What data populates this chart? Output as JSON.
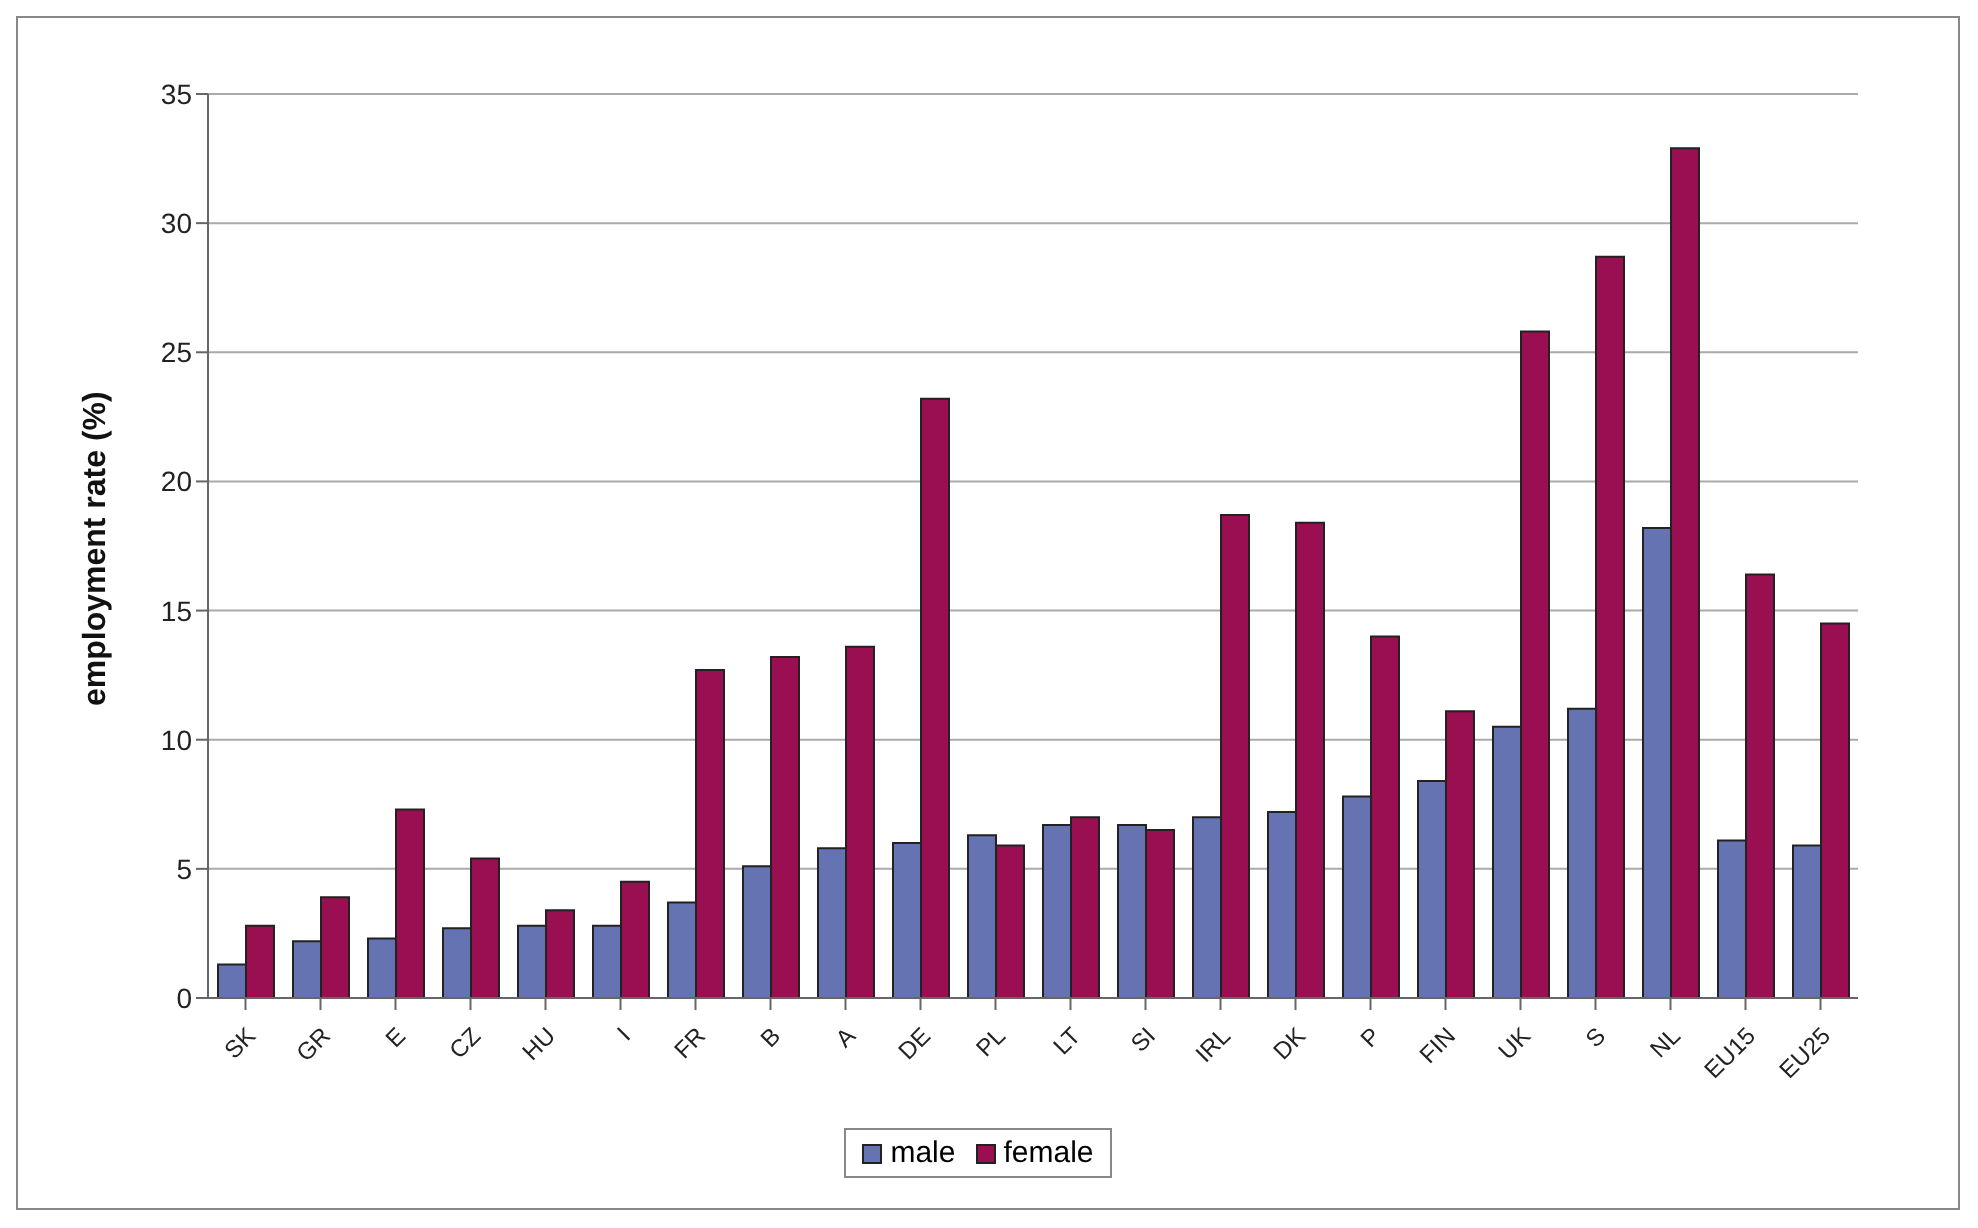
{
  "chart_data": {
    "type": "bar",
    "ylabel": "employment rate (%)",
    "categories": [
      "SK",
      "GR",
      "E",
      "CZ",
      "HU",
      "I",
      "FR",
      "B",
      "A",
      "DE",
      "PL",
      "LT",
      "SI",
      "IRL",
      "DK",
      "P",
      "FIN",
      "UK",
      "S",
      "NL",
      "EU15",
      "EU25"
    ],
    "series": [
      {
        "name": "male",
        "color": "#6673b3",
        "values": [
          1.3,
          2.2,
          2.3,
          2.7,
          2.8,
          2.8,
          3.7,
          5.1,
          5.8,
          6.0,
          6.3,
          6.7,
          6.7,
          7.0,
          7.2,
          7.8,
          8.4,
          10.5,
          11.2,
          18.2,
          6.1,
          5.9
        ]
      },
      {
        "name": "female",
        "color": "#990f52",
        "values": [
          2.8,
          3.9,
          7.3,
          5.4,
          3.4,
          4.5,
          12.7,
          13.2,
          13.6,
          23.2,
          5.9,
          7.0,
          6.5,
          18.7,
          18.4,
          14.0,
          11.1,
          25.8,
          28.7,
          32.9,
          16.4,
          14.5
        ]
      }
    ],
    "ylim": [
      0,
      35
    ],
    "yticks": [
      0,
      5,
      10,
      15,
      20,
      25,
      30,
      35
    ],
    "grid": "y",
    "legend": "bottom"
  }
}
